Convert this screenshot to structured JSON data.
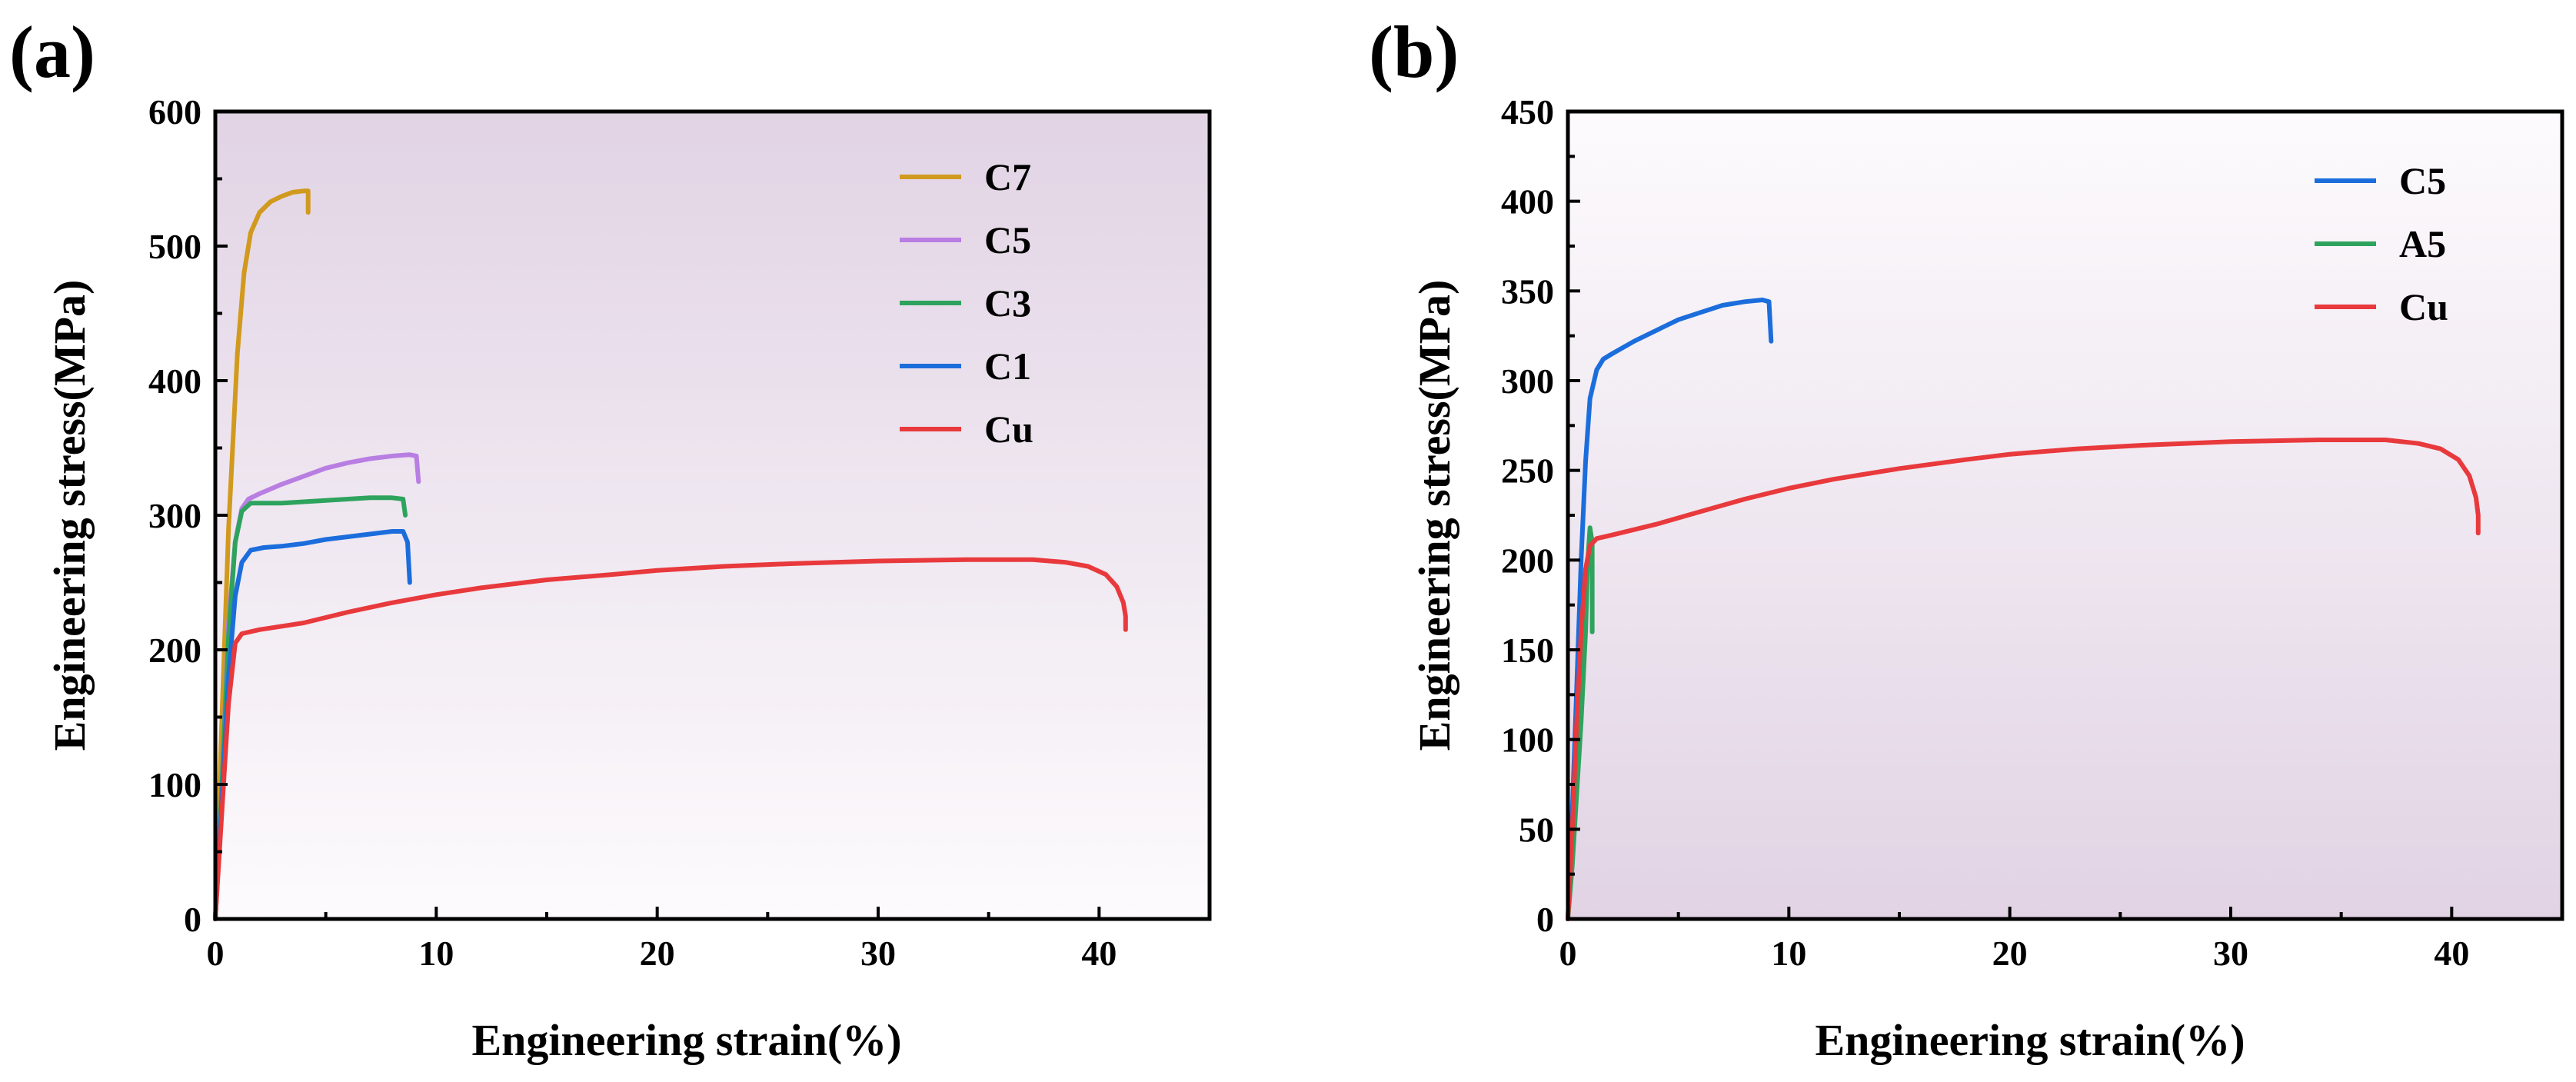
{
  "chart_data": [
    {
      "type": "line",
      "panel_label": "(a)",
      "xlabel": "Engineering strain(%)",
      "ylabel": "Engineering stress(MPa)",
      "xlim": [
        0,
        45
      ],
      "ylim": [
        0,
        600
      ],
      "xticks": [
        0,
        10,
        20,
        30,
        40
      ],
      "yticks": [
        0,
        100,
        200,
        300,
        400,
        500,
        600
      ],
      "background_gradient": [
        "#e1d3e4",
        "#fdfbfd"
      ],
      "legend_position": "top-right",
      "series": [
        {
          "name": "C7",
          "color": "#d19a1e",
          "points": [
            [
              0,
              0
            ],
            [
              0.3,
              150
            ],
            [
              0.6,
              290
            ],
            [
              1.0,
              420
            ],
            [
              1.3,
              480
            ],
            [
              1.6,
              510
            ],
            [
              2.0,
              525
            ],
            [
              2.5,
              533
            ],
            [
              3.0,
              537
            ],
            [
              3.5,
              540
            ],
            [
              4.0,
              541
            ],
            [
              4.2,
              541
            ],
            [
              4.2,
              525
            ]
          ]
        },
        {
          "name": "C5",
          "color": "#b87ee2",
          "points": [
            [
              0,
              0
            ],
            [
              0.3,
              100
            ],
            [
              0.6,
              220
            ],
            [
              0.9,
              280
            ],
            [
              1.2,
              305
            ],
            [
              1.5,
              312
            ],
            [
              2.0,
              316
            ],
            [
              3.0,
              323
            ],
            [
              4.0,
              329
            ],
            [
              5.0,
              335
            ],
            [
              6.0,
              339
            ],
            [
              7.0,
              342
            ],
            [
              8.0,
              344
            ],
            [
              8.8,
              345
            ],
            [
              9.1,
              344
            ],
            [
              9.2,
              325
            ]
          ]
        },
        {
          "name": "C3",
          "color": "#2ea35d",
          "points": [
            [
              0,
              0
            ],
            [
              0.3,
              100
            ],
            [
              0.6,
              210
            ],
            [
              0.9,
              280
            ],
            [
              1.2,
              303
            ],
            [
              1.6,
              309
            ],
            [
              2.2,
              309
            ],
            [
              3.0,
              309
            ],
            [
              4.0,
              310
            ],
            [
              5.0,
              311
            ],
            [
              6.0,
              312
            ],
            [
              7.0,
              313
            ],
            [
              8.0,
              313
            ],
            [
              8.5,
              312
            ],
            [
              8.6,
              300
            ]
          ]
        },
        {
          "name": "C1",
          "color": "#1c6ddc",
          "points": [
            [
              0,
              0
            ],
            [
              0.3,
              90
            ],
            [
              0.6,
              180
            ],
            [
              0.9,
              240
            ],
            [
              1.2,
              265
            ],
            [
              1.6,
              274
            ],
            [
              2.2,
              276
            ],
            [
              3.0,
              277
            ],
            [
              4.0,
              279
            ],
            [
              5.0,
              282
            ],
            [
              6.0,
              284
            ],
            [
              7.0,
              286
            ],
            [
              8.0,
              288
            ],
            [
              8.5,
              288
            ],
            [
              8.7,
              280
            ],
            [
              8.8,
              250
            ]
          ]
        },
        {
          "name": "Cu",
          "color": "#e8393c",
          "points": [
            [
              0,
              0
            ],
            [
              0.3,
              80
            ],
            [
              0.6,
              160
            ],
            [
              0.9,
              205
            ],
            [
              1.2,
              212
            ],
            [
              2.0,
              215
            ],
            [
              4.0,
              220
            ],
            [
              6.0,
              228
            ],
            [
              8.0,
              235
            ],
            [
              10.0,
              241
            ],
            [
              12.0,
              246
            ],
            [
              15.0,
              252
            ],
            [
              18.0,
              256
            ],
            [
              20.0,
              259
            ],
            [
              23.0,
              262
            ],
            [
              26.0,
              264
            ],
            [
              30.0,
              266
            ],
            [
              34.0,
              267
            ],
            [
              37.0,
              267
            ],
            [
              38.5,
              265
            ],
            [
              39.5,
              262
            ],
            [
              40.3,
              256
            ],
            [
              40.8,
              247
            ],
            [
              41.1,
              235
            ],
            [
              41.2,
              225
            ],
            [
              41.2,
              215
            ]
          ]
        }
      ]
    },
    {
      "type": "line",
      "panel_label": "(b)",
      "xlabel": "Engineering strain(%)",
      "ylabel": "Engineering stress(MPa)",
      "xlim": [
        0,
        45
      ],
      "ylim": [
        0,
        450
      ],
      "xticks": [
        0,
        10,
        20,
        30,
        40
      ],
      "yticks": [
        0,
        50,
        100,
        150,
        200,
        250,
        300,
        350,
        400,
        450
      ],
      "background_gradient": [
        "#fdfbfd",
        "#e1d3e4"
      ],
      "legend_position": "top-right",
      "series": [
        {
          "name": "C5",
          "color": "#1c6ddc",
          "points": [
            [
              0,
              0
            ],
            [
              0.2,
              60
            ],
            [
              0.4,
              130
            ],
            [
              0.6,
              200
            ],
            [
              0.8,
              255
            ],
            [
              1.0,
              290
            ],
            [
              1.3,
              306
            ],
            [
              1.6,
              312
            ],
            [
              2.0,
              315
            ],
            [
              3.0,
              322
            ],
            [
              4.0,
              328
            ],
            [
              5.0,
              334
            ],
            [
              6.0,
              338
            ],
            [
              7.0,
              342
            ],
            [
              8.0,
              344
            ],
            [
              8.8,
              345
            ],
            [
              9.1,
              344
            ],
            [
              9.2,
              322
            ]
          ]
        },
        {
          "name": "A5",
          "color": "#2ea35d",
          "points": [
            [
              0,
              0
            ],
            [
              0.2,
              30
            ],
            [
              0.4,
              70
            ],
            [
              0.6,
              110
            ],
            [
              0.8,
              160
            ],
            [
              0.9,
              200
            ],
            [
              1.0,
              218
            ],
            [
              1.1,
              210
            ],
            [
              1.1,
              160
            ]
          ]
        },
        {
          "name": "Cu",
          "color": "#e8393c",
          "points": [
            [
              0,
              0
            ],
            [
              0.2,
              50
            ],
            [
              0.4,
              110
            ],
            [
              0.6,
              160
            ],
            [
              0.8,
              195
            ],
            [
              1.0,
              208
            ],
            [
              1.3,
              212
            ],
            [
              2.0,
              214
            ],
            [
              4.0,
              220
            ],
            [
              6.0,
              227
            ],
            [
              8.0,
              234
            ],
            [
              10.0,
              240
            ],
            [
              12.0,
              245
            ],
            [
              15.0,
              251
            ],
            [
              18.0,
              256
            ],
            [
              20.0,
              259
            ],
            [
              23.0,
              262
            ],
            [
              26.0,
              264
            ],
            [
              30.0,
              266
            ],
            [
              34.0,
              267
            ],
            [
              37.0,
              267
            ],
            [
              38.5,
              265
            ],
            [
              39.5,
              262
            ],
            [
              40.3,
              256
            ],
            [
              40.8,
              247
            ],
            [
              41.1,
              235
            ],
            [
              41.2,
              225
            ],
            [
              41.2,
              215
            ]
          ]
        }
      ]
    }
  ]
}
